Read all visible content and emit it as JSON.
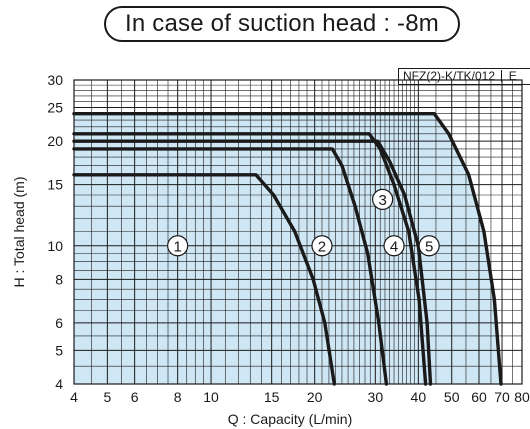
{
  "header": {
    "title": "In case of suction head : -8m"
  },
  "model_code": "NFZ(2)-K/TK/012",
  "model_code_extra": "E",
  "colors": {
    "plot_fill": "#cfe7f4",
    "curve": "#1a1a1a",
    "grid": "#1a1a1a"
  },
  "chart_data": {
    "type": "line",
    "xscale": "log",
    "yscale": "log",
    "xlabel": "Q : Capacity (L/min)",
    "ylabel": "H : Total head (m)",
    "xlim": [
      4,
      80
    ],
    "ylim": [
      4,
      30
    ],
    "x_ticks": [
      4,
      5,
      6,
      8,
      10,
      15,
      20,
      30,
      40,
      50,
      60,
      70,
      80
    ],
    "x_tick_labels": [
      "4",
      "5",
      "6",
      "8",
      "10",
      "15",
      "20",
      "30",
      "40",
      "50",
      "60",
      "70",
      "80"
    ],
    "y_ticks": [
      4,
      5,
      6,
      8,
      10,
      15,
      20,
      25,
      30
    ],
    "y_tick_labels": [
      "4",
      "5",
      "6",
      "8",
      "10",
      "15",
      "20",
      "25",
      "30"
    ],
    "grid": true,
    "series": [
      {
        "name": "1",
        "points": [
          [
            4,
            16
          ],
          [
            13.5,
            16
          ],
          [
            15.2,
            14
          ],
          [
            17.5,
            11
          ],
          [
            19.8,
            8
          ],
          [
            21.4,
            6
          ],
          [
            22.8,
            4
          ]
        ]
      },
      {
        "name": "2",
        "points": [
          [
            4,
            19
          ],
          [
            22.5,
            19
          ],
          [
            24,
            17
          ],
          [
            26.2,
            13
          ],
          [
            28.5,
            9.5
          ],
          [
            30.7,
            6
          ],
          [
            32.3,
            4
          ]
        ]
      },
      {
        "name": "3",
        "points": [
          [
            4,
            21
          ],
          [
            28.8,
            21
          ],
          [
            31,
            19
          ],
          [
            34,
            15
          ],
          [
            37.5,
            11
          ],
          [
            40.2,
            7
          ],
          [
            42,
            4
          ]
        ]
      },
      {
        "name": "4",
        "points": [
          [
            4,
            20
          ],
          [
            30.5,
            20
          ],
          [
            33,
            17.5
          ],
          [
            36.5,
            14
          ],
          [
            40,
            10
          ],
          [
            42.4,
            6
          ],
          [
            43.4,
            4
          ]
        ]
      },
      {
        "name": "5",
        "points": [
          [
            4,
            24
          ],
          [
            44.5,
            24
          ],
          [
            49,
            21
          ],
          [
            56,
            16
          ],
          [
            62,
            11
          ],
          [
            66.5,
            7
          ],
          [
            69.5,
            4
          ]
        ]
      }
    ],
    "curve_labels": [
      {
        "text": "1",
        "x": 8,
        "y": 10
      },
      {
        "text": "2",
        "x": 21,
        "y": 10
      },
      {
        "text": "3",
        "x": 31.5,
        "y": 13.6
      },
      {
        "text": "4",
        "x": 34,
        "y": 10
      },
      {
        "text": "5",
        "x": 43,
        "y": 10
      }
    ]
  }
}
